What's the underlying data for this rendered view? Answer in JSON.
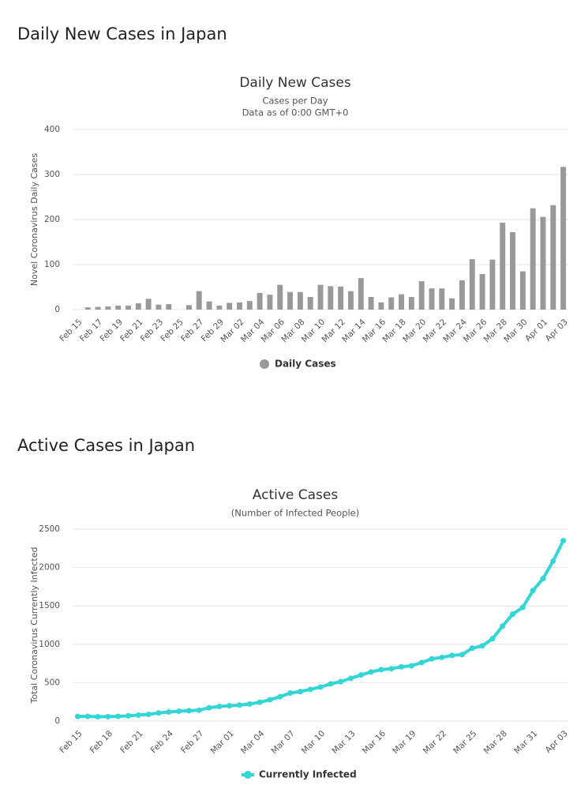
{
  "headings": [
    "Daily New Cases in Japan",
    "Active Cases in Japan"
  ],
  "chart_data": [
    {
      "type": "bar",
      "title": "Daily New Cases",
      "subtitle": [
        "Cases per Day",
        "Data as of 0:00 GMT+0"
      ],
      "y_label": "Novel Coronavirus Daily Cases",
      "categories": [
        "Feb 15",
        null,
        "Feb 17",
        null,
        "Feb 19",
        null,
        "Feb 21",
        null,
        "Feb 23",
        null,
        "Feb 25",
        null,
        "Feb 27",
        null,
        "Feb 29",
        null,
        "Mar 02",
        null,
        "Mar 04",
        null,
        "Mar 06",
        null,
        "Mar 08",
        null,
        "Mar 10",
        null,
        "Mar 12",
        null,
        "Mar 14",
        null,
        "Mar 16",
        null,
        "Mar 18",
        null,
        "Mar 20",
        null,
        "Mar 22",
        null,
        "Mar 24",
        null,
        "Mar 26",
        null,
        "Mar 28",
        null,
        "Mar 30",
        null,
        "Apr 01",
        null,
        "Apr 03"
      ],
      "series": [
        {
          "name": "Daily Cases",
          "color": "#999999",
          "values": [
            0,
            5,
            6,
            7,
            9,
            9,
            14,
            24,
            11,
            12,
            0,
            10,
            41,
            18,
            9,
            15,
            16,
            19,
            37,
            33,
            55,
            39,
            39,
            28,
            55,
            52,
            51,
            41,
            70,
            28,
            16,
            27,
            34,
            28,
            63,
            47,
            47,
            25,
            65,
            112,
            79,
            111,
            193,
            172,
            85,
            225,
            206,
            232,
            317
          ]
        }
      ],
      "ylim": [
        0,
        400
      ],
      "yticks": [
        0,
        100,
        200,
        300,
        400
      ],
      "grid": true
    },
    {
      "type": "line",
      "title": "Active Cases",
      "subtitle": [
        "(Number of Infected People)"
      ],
      "y_label": "Total Coronavirus Currently Infected",
      "categories": [
        "Feb 15",
        null,
        null,
        "Feb 18",
        null,
        null,
        "Feb 21",
        null,
        null,
        "Feb 24",
        null,
        null,
        "Feb 27",
        null,
        null,
        "Mar 01",
        null,
        null,
        "Mar 04",
        null,
        null,
        "Mar 07",
        null,
        null,
        "Mar 10",
        null,
        null,
        "Mar 13",
        null,
        null,
        "Mar 16",
        null,
        null,
        "Mar 19",
        null,
        null,
        "Mar 22",
        null,
        null,
        "Mar 25",
        null,
        null,
        "Mar 28",
        null,
        null,
        "Mar 31",
        null,
        null,
        "Apr 03"
      ],
      "series": [
        {
          "name": "Currently Infected",
          "color": "#33d6d6",
          "values": [
            60,
            62,
            56,
            58,
            62,
            68,
            78,
            87,
            106,
            118,
            128,
            135,
            142,
            174,
            190,
            200,
            208,
            222,
            245,
            277,
            317,
            365,
            384,
            413,
            443,
            485,
            513,
            557,
            600,
            640,
            670,
            682,
            707,
            720,
            762,
            810,
            830,
            855,
            865,
            950,
            980,
            1072,
            1237,
            1393,
            1481,
            1700,
            1856,
            2085,
            2350
          ]
        }
      ],
      "ylim": [
        0,
        2500
      ],
      "yticks": [
        0,
        500,
        1000,
        1500,
        2000,
        2500
      ],
      "grid": true
    }
  ]
}
